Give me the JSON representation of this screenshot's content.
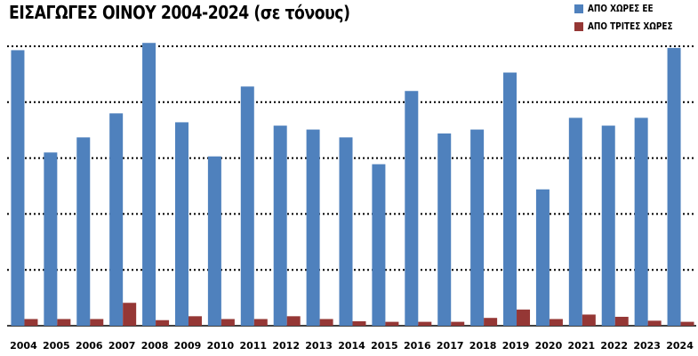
{
  "title": "ΕΙΣΑΓΩΓΕΣ ΟΙΝΟΥ 2004-2024 (σε τόνους)",
  "legend": [
    {
      "label": "ΑΠΟ ΧΩΡΕΣ ΕΕ",
      "color": "#4F81BD"
    },
    {
      "label": "ΑΠΟ ΤΡΙΤΕΣ ΧΩΡΕΣ",
      "color": "#953735"
    }
  ],
  "chart_data": {
    "type": "bar",
    "title": "ΕΙΣΑΓΩΓΕΣ ΟΙΝΟΥ 2004-2024 (σε τόνους)",
    "categories": [
      "2004",
      "2005",
      "2006",
      "2007",
      "2008",
      "2009",
      "2010",
      "2011",
      "2012",
      "2013",
      "2014",
      "2015",
      "2016",
      "2017",
      "2018",
      "2019",
      "2020",
      "2021",
      "2022",
      "2023",
      "2024"
    ],
    "series": [
      {
        "name": "ΑΠΟ ΧΩΡΕΣ ΕΕ",
        "color": "#4F81BD",
        "values": [
          4.93,
          3.1,
          3.37,
          3.8,
          5.06,
          3.64,
          3.03,
          4.28,
          3.58,
          3.51,
          3.37,
          2.89,
          4.2,
          3.44,
          3.51,
          4.53,
          2.44,
          3.72,
          3.58,
          3.72,
          4.97
        ]
      },
      {
        "name": "ΑΠΟ ΤΡΙΤΕΣ ΧΩΡΕΣ",
        "color": "#953735",
        "values": [
          0.12,
          0.12,
          0.12,
          0.41,
          0.1,
          0.17,
          0.12,
          0.12,
          0.17,
          0.12,
          0.08,
          0.07,
          0.07,
          0.07,
          0.14,
          0.29,
          0.12,
          0.2,
          0.16,
          0.09,
          0.07
        ]
      }
    ],
    "ylim": [
      0,
      5.4
    ],
    "gridlines": [
      0,
      1,
      2,
      3,
      4,
      5
    ],
    "grid": true,
    "grid_style": "dotted",
    "legend_position": "top-right"
  }
}
